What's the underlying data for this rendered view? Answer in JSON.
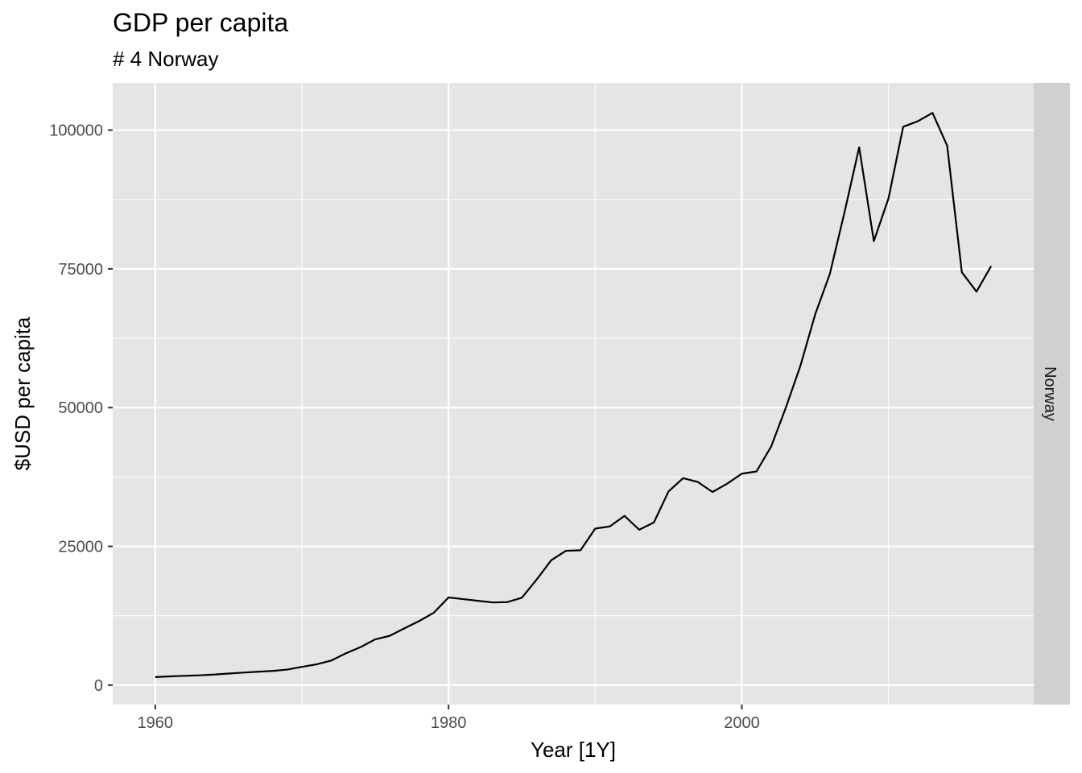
{
  "chart_data": {
    "type": "line",
    "title": "GDP per capita",
    "subtitle": "# 4 Norway",
    "xlabel": "Year [1Y]",
    "ylabel": "$USD per capita",
    "facet_label": "Norway",
    "xlim": [
      1957.1,
      2019.9
    ],
    "ylim": [
      -3500,
      108500
    ],
    "x_ticks": [
      1960,
      1980,
      2000
    ],
    "x_tick_labels": [
      "1960",
      "1980",
      "2000"
    ],
    "y_ticks": [
      0,
      25000,
      50000,
      75000,
      100000
    ],
    "y_tick_labels": [
      "0",
      "25000",
      "50000",
      "75000",
      "100000"
    ],
    "grid": true,
    "panel_background": "#e5e5e5",
    "strip_background": "#d0d0d0",
    "grid_color": "#ffffff",
    "line_color": "#000000",
    "series": [
      {
        "x": [
          1960,
          1961,
          1962,
          1963,
          1964,
          1965,
          1966,
          1967,
          1968,
          1969,
          1970,
          1971,
          1972,
          1973,
          1974,
          1975,
          1976,
          1977,
          1978,
          1979,
          1980,
          1981,
          1982,
          1983,
          1984,
          1985,
          1986,
          1987,
          1988,
          1989,
          1990,
          1991,
          1992,
          1993,
          1994,
          1995,
          1996,
          1997,
          1998,
          1999,
          2000,
          2001,
          2002,
          2003,
          2004,
          2005,
          2006,
          2007,
          2008,
          2009,
          2010,
          2011,
          2012,
          2013,
          2014,
          2015,
          2016,
          2017
        ],
        "values": [
          1450,
          1580,
          1680,
          1770,
          1900,
          2090,
          2260,
          2410,
          2560,
          2800,
          3290,
          3740,
          4430,
          5730,
          6850,
          8250,
          8900,
          10250,
          11550,
          13050,
          15800,
          15500,
          15200,
          14900,
          14950,
          15750,
          19000,
          22500,
          24200,
          24300,
          28200,
          28600,
          30500,
          28000,
          29300,
          34900,
          37300,
          36600,
          34800,
          36300,
          38100,
          38500,
          43000,
          50000,
          57600,
          66800,
          74100,
          85200,
          96900,
          80000,
          87700,
          100600,
          101600,
          103100,
          97200,
          74400,
          70900,
          75500
        ]
      }
    ]
  }
}
